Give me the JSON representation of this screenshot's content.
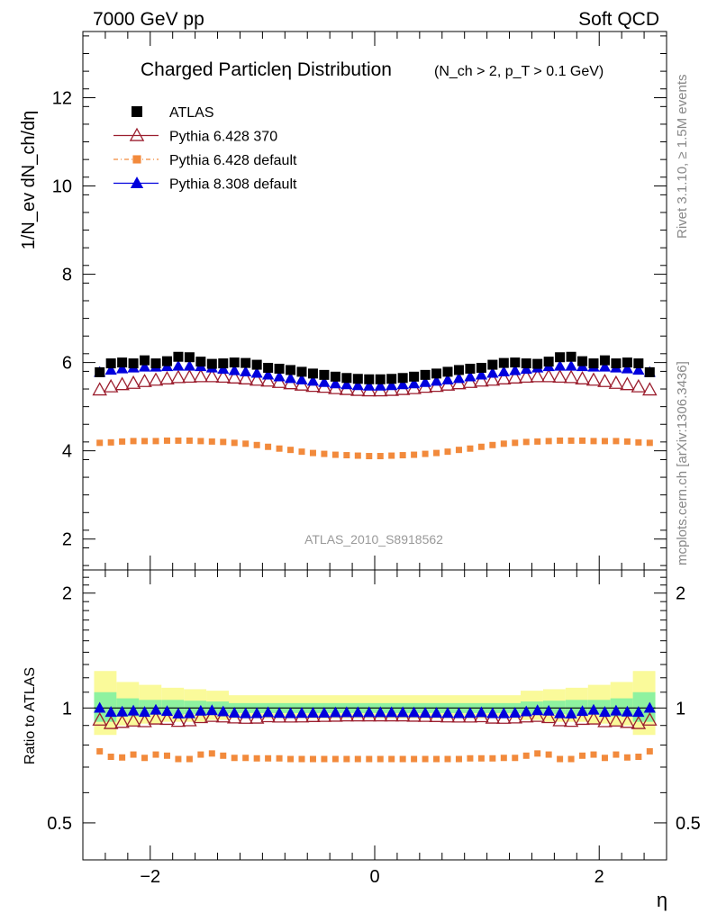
{
  "header": {
    "left": "7000 GeV pp",
    "right": "Soft QCD"
  },
  "side_labels": {
    "rivet": "Rivet 3.1.10, ≥ 1.5M events",
    "mcplots": "mcplots.cern.ch [arXiv:1306.3436]"
  },
  "chart_data": [
    {
      "type": "scatter",
      "panel": "main",
      "title": "Charged Particleη Distribution",
      "subtitle": "(N_ch > 2, p_T > 0.1 GeV)",
      "ylabel": "1/N_ev dN_ch/dη",
      "xlabel": "",
      "watermark": "ATLAS_2010_S8918562",
      "xlim": [
        -2.6,
        2.6
      ],
      "ylim": [
        1.3,
        13.5
      ],
      "yticks": [
        2,
        4,
        6,
        8,
        10,
        12
      ],
      "legend_position": "top-left",
      "x": [
        -2.45,
        -2.35,
        -2.25,
        -2.15,
        -2.05,
        -1.95,
        -1.85,
        -1.75,
        -1.65,
        -1.55,
        -1.45,
        -1.35,
        -1.25,
        -1.15,
        -1.05,
        -0.95,
        -0.85,
        -0.75,
        -0.65,
        -0.55,
        -0.45,
        -0.35,
        -0.25,
        -0.15,
        -0.05,
        0.05,
        0.15,
        0.25,
        0.35,
        0.45,
        0.55,
        0.65,
        0.75,
        0.85,
        0.95,
        1.05,
        1.15,
        1.25,
        1.35,
        1.45,
        1.55,
        1.65,
        1.75,
        1.85,
        1.95,
        2.05,
        2.15,
        2.25,
        2.35,
        2.45
      ],
      "series": [
        {
          "name": "ATLAS",
          "color": "#000000",
          "marker": "square",
          "values": [
            5.78,
            5.98,
            6.0,
            5.98,
            6.05,
            5.98,
            6.03,
            6.13,
            6.12,
            6.02,
            5.97,
            5.98,
            6.0,
            5.99,
            5.95,
            5.88,
            5.86,
            5.83,
            5.79,
            5.75,
            5.72,
            5.68,
            5.65,
            5.63,
            5.62,
            5.62,
            5.63,
            5.65,
            5.68,
            5.72,
            5.75,
            5.79,
            5.83,
            5.86,
            5.88,
            5.95,
            5.99,
            6.0,
            5.98,
            5.97,
            6.02,
            6.12,
            6.13,
            6.03,
            5.98,
            6.05,
            5.98,
            6.0,
            5.98,
            5.78
          ]
        },
        {
          "name": "Pythia 6.428 370",
          "color": "#9b1e2e",
          "marker": "open-triangle",
          "values": [
            5.38,
            5.45,
            5.5,
            5.53,
            5.57,
            5.6,
            5.63,
            5.66,
            5.67,
            5.68,
            5.68,
            5.67,
            5.65,
            5.63,
            5.6,
            5.58,
            5.55,
            5.52,
            5.49,
            5.46,
            5.44,
            5.41,
            5.39,
            5.37,
            5.36,
            5.36,
            5.37,
            5.39,
            5.41,
            5.44,
            5.46,
            5.49,
            5.52,
            5.55,
            5.58,
            5.6,
            5.63,
            5.65,
            5.67,
            5.68,
            5.68,
            5.67,
            5.66,
            5.63,
            5.6,
            5.57,
            5.53,
            5.5,
            5.45,
            5.38
          ]
        },
        {
          "name": "Pythia 6.428 default",
          "color": "#f28a3c",
          "marker": "small-square",
          "values": [
            4.18,
            4.19,
            4.21,
            4.22,
            4.22,
            4.22,
            4.23,
            4.23,
            4.23,
            4.22,
            4.21,
            4.2,
            4.18,
            4.16,
            4.13,
            4.09,
            4.05,
            4.02,
            3.98,
            3.95,
            3.93,
            3.91,
            3.9,
            3.89,
            3.88,
            3.88,
            3.89,
            3.9,
            3.91,
            3.93,
            3.95,
            3.98,
            4.02,
            4.05,
            4.09,
            4.13,
            4.16,
            4.18,
            4.2,
            4.21,
            4.22,
            4.23,
            4.23,
            4.23,
            4.22,
            4.22,
            4.22,
            4.21,
            4.19,
            4.18
          ]
        },
        {
          "name": "Pythia 8.308 default",
          "color": "#0000dd",
          "marker": "triangle",
          "values": [
            5.78,
            5.83,
            5.86,
            5.88,
            5.9,
            5.9,
            5.91,
            5.92,
            5.92,
            5.91,
            5.88,
            5.85,
            5.82,
            5.79,
            5.76,
            5.72,
            5.68,
            5.64,
            5.61,
            5.58,
            5.55,
            5.52,
            5.5,
            5.48,
            5.47,
            5.47,
            5.48,
            5.5,
            5.52,
            5.55,
            5.58,
            5.61,
            5.64,
            5.68,
            5.72,
            5.76,
            5.79,
            5.82,
            5.85,
            5.88,
            5.91,
            5.92,
            5.92,
            5.91,
            5.9,
            5.9,
            5.88,
            5.86,
            5.83,
            5.78
          ]
        }
      ]
    },
    {
      "type": "scatter",
      "panel": "ratio",
      "ylabel": "Ratio to ATLAS",
      "xlabel": "η",
      "xlim": [
        -2.6,
        2.6
      ],
      "ylim": [
        0.4,
        2.3
      ],
      "log_y": true,
      "yticks": [
        0.5,
        1,
        2
      ],
      "xticks": [
        -2,
        0,
        2
      ],
      "bands": {
        "x_edges": [
          -2.5,
          -2.3,
          -2.1,
          -1.9,
          -1.7,
          -1.5,
          -1.3,
          1.3,
          1.5,
          1.7,
          1.9,
          2.1,
          2.3,
          2.5
        ],
        "outer_yellow": [
          [
            0.85,
            1.25
          ],
          [
            0.9,
            1.17
          ],
          [
            0.91,
            1.15
          ],
          [
            0.92,
            1.13
          ],
          [
            0.92,
            1.12
          ],
          [
            0.93,
            1.11
          ],
          [
            0.94,
            1.08
          ],
          [
            0.93,
            1.11
          ],
          [
            0.92,
            1.12
          ],
          [
            0.92,
            1.13
          ],
          [
            0.91,
            1.15
          ],
          [
            0.9,
            1.17
          ],
          [
            0.85,
            1.25
          ]
        ],
        "inner_green": [
          [
            0.92,
            1.1
          ],
          [
            0.95,
            1.06
          ],
          [
            0.96,
            1.05
          ],
          [
            0.96,
            1.05
          ],
          [
            0.965,
            1.045
          ],
          [
            0.965,
            1.04
          ],
          [
            0.97,
            1.03
          ],
          [
            0.965,
            1.04
          ],
          [
            0.965,
            1.045
          ],
          [
            0.96,
            1.05
          ],
          [
            0.96,
            1.05
          ],
          [
            0.95,
            1.06
          ],
          [
            0.92,
            1.1
          ]
        ]
      },
      "series": [
        {
          "name": "Pythia 6.428 370",
          "color": "#9b1e2e",
          "marker": "open-triangle",
          "values": [
            0.93,
            0.911,
            0.917,
            0.925,
            0.921,
            0.936,
            0.934,
            0.923,
            0.926,
            0.944,
            0.951,
            0.948,
            0.942,
            0.94,
            0.941,
            0.949,
            0.947,
            0.947,
            0.948,
            0.95,
            0.951,
            0.952,
            0.954,
            0.954,
            0.954,
            0.954,
            0.954,
            0.954,
            0.952,
            0.951,
            0.95,
            0.948,
            0.947,
            0.947,
            0.949,
            0.941,
            0.94,
            0.942,
            0.948,
            0.951,
            0.944,
            0.926,
            0.923,
            0.934,
            0.936,
            0.921,
            0.925,
            0.917,
            0.911,
            0.93
          ]
        },
        {
          "name": "Pythia 6.428 default",
          "color": "#f28a3c",
          "marker": "small-square",
          "values": [
            0.77,
            0.745,
            0.742,
            0.755,
            0.74,
            0.755,
            0.75,
            0.735,
            0.735,
            0.755,
            0.76,
            0.75,
            0.74,
            0.74,
            0.738,
            0.738,
            0.738,
            0.735,
            0.735,
            0.735,
            0.735,
            0.735,
            0.735,
            0.735,
            0.735,
            0.735,
            0.735,
            0.735,
            0.735,
            0.735,
            0.735,
            0.735,
            0.735,
            0.738,
            0.738,
            0.738,
            0.74,
            0.74,
            0.75,
            0.76,
            0.755,
            0.735,
            0.735,
            0.75,
            0.755,
            0.74,
            0.755,
            0.742,
            0.745,
            0.77
          ]
        },
        {
          "name": "Pythia 8.308 default",
          "color": "#0000dd",
          "marker": "triangle",
          "values": [
            1.0,
            0.975,
            0.977,
            0.983,
            0.975,
            0.988,
            0.98,
            0.966,
            0.967,
            0.982,
            0.985,
            0.978,
            0.97,
            0.967,
            0.968,
            0.973,
            0.969,
            0.968,
            0.969,
            0.97,
            0.97,
            0.972,
            0.973,
            0.973,
            0.973,
            0.973,
            0.973,
            0.973,
            0.972,
            0.97,
            0.97,
            0.969,
            0.968,
            0.969,
            0.973,
            0.968,
            0.967,
            0.97,
            0.978,
            0.985,
            0.982,
            0.967,
            0.966,
            0.98,
            0.988,
            0.975,
            0.983,
            0.977,
            0.975,
            1.0
          ]
        }
      ]
    }
  ]
}
